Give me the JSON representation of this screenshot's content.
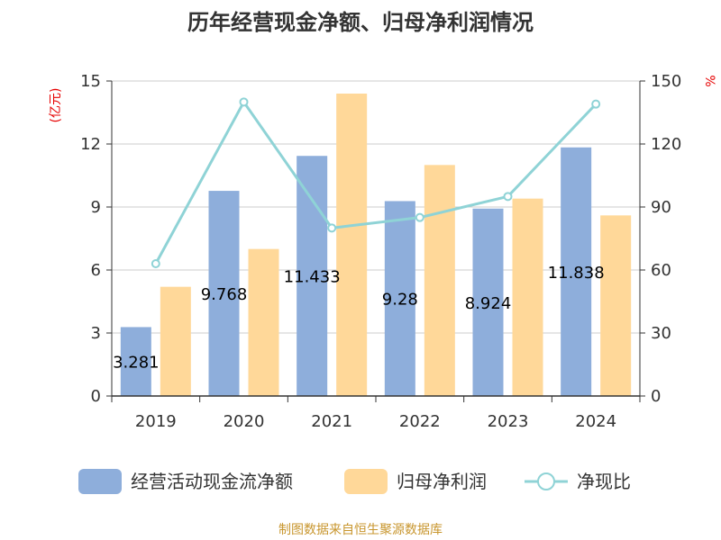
{
  "chart_data": {
    "type": "bar",
    "title": "历年经营现金净额、归母净利润情况",
    "categories": [
      "2019",
      "2020",
      "2021",
      "2022",
      "2023",
      "2024"
    ],
    "y_left": {
      "label": "(亿元)",
      "ticks": [
        "0",
        "3",
        "6",
        "9",
        "12",
        "15"
      ],
      "range": [
        0,
        15
      ]
    },
    "y_right": {
      "label": "%",
      "ticks": [
        "0",
        "30",
        "60",
        "90",
        "120",
        "150"
      ],
      "range": [
        0,
        150
      ]
    },
    "series": [
      {
        "name": "经营活动现金流净额",
        "kind": "bar",
        "axis": "left",
        "color": "#8eaedb",
        "values": [
          3.281,
          9.768,
          11.433,
          9.28,
          8.924,
          11.838
        ],
        "labels": [
          "3.281",
          "9.768",
          "11.433",
          "9.28",
          "8.924",
          "11.838"
        ]
      },
      {
        "name": "归母净利润",
        "kind": "bar",
        "axis": "left",
        "color": "#ffd899",
        "values": [
          5.2,
          7.0,
          14.4,
          11.0,
          9.4,
          8.6
        ]
      },
      {
        "name": "净现比",
        "kind": "line",
        "axis": "right",
        "color": "#8fd3d6",
        "values": [
          63,
          140,
          80,
          85,
          95,
          139
        ]
      }
    ],
    "legend_position": "bottom",
    "grid": true
  },
  "source": "制图数据来自恒生聚源数据库"
}
